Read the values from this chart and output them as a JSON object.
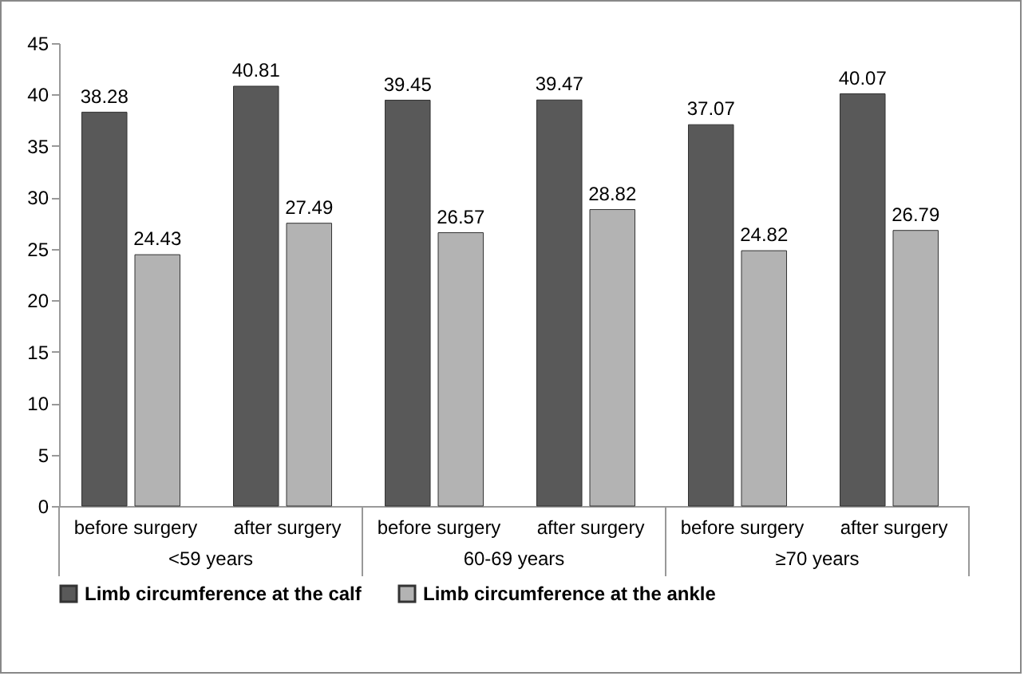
{
  "chart_data": {
    "type": "bar",
    "categories": [
      "before surgery",
      "after surgery",
      "before surgery",
      "after surgery",
      "before surgery",
      "after surgery"
    ],
    "annotations": [
      "<59 years",
      "60-69 years",
      "≥70 years"
    ],
    "series": [
      {
        "name": "Limb circumference at the calf",
        "color": "#595959",
        "values": [
          38.28,
          40.81,
          39.45,
          39.47,
          37.07,
          40.07
        ]
      },
      {
        "name": "Limb circumference at the ankle",
        "color": "#b3b3b3",
        "values": [
          24.43,
          27.49,
          26.57,
          28.82,
          24.82,
          26.79
        ]
      }
    ],
    "ylim": [
      0,
      45
    ],
    "yticks": [
      0,
      5,
      10,
      15,
      20,
      25,
      30,
      35,
      40,
      45
    ],
    "data_labels": true,
    "legend": "bottom"
  }
}
